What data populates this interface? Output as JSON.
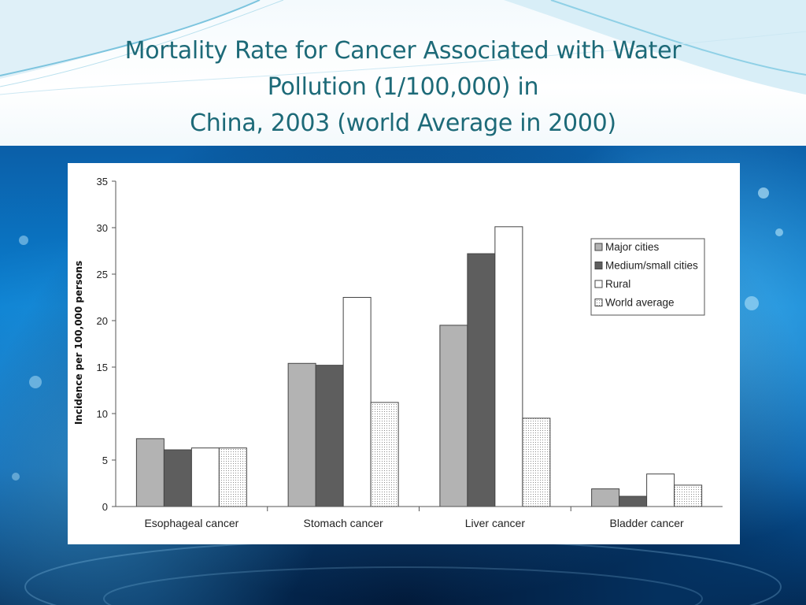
{
  "slide": {
    "title_lines": [
      "Mortality Rate for Cancer Associated with Water",
      "Pollution (1/100,000) in",
      "China, 2003 (world Average in 2000)"
    ]
  },
  "colors": {
    "title": "#1d6a78",
    "major_cities": "#b3b3b3",
    "medium_small_cities": "#5e5e5e",
    "rural": "#ffffff",
    "world_average": "#dcdcdc"
  },
  "chart_data": {
    "type": "bar",
    "title": "",
    "xlabel": "",
    "ylabel": "Incidence per 100,000 persons",
    "ylim": [
      0,
      35
    ],
    "yticks": [
      0,
      5,
      10,
      15,
      20,
      25,
      30,
      35
    ],
    "categories": [
      "Esophageal cancer",
      "Stomach cancer",
      "Liver cancer",
      "Bladder cancer"
    ],
    "series": [
      {
        "name": "Major cities",
        "values": [
          7.3,
          15.4,
          19.5,
          1.9
        ],
        "color": "#b3b3b3",
        "pattern": "solid"
      },
      {
        "name": "Medium/small cities",
        "values": [
          6.1,
          15.2,
          27.2,
          1.1
        ],
        "color": "#5e5e5e",
        "pattern": "solid"
      },
      {
        "name": "Rural",
        "values": [
          6.3,
          22.5,
          30.1,
          3.5
        ],
        "color": "#ffffff",
        "pattern": "solid"
      },
      {
        "name": "World average",
        "values": [
          6.3,
          11.2,
          9.5,
          2.3
        ],
        "color": "#dcdcdc",
        "pattern": "dotted"
      }
    ],
    "legend": "top-right",
    "grid": false
  }
}
